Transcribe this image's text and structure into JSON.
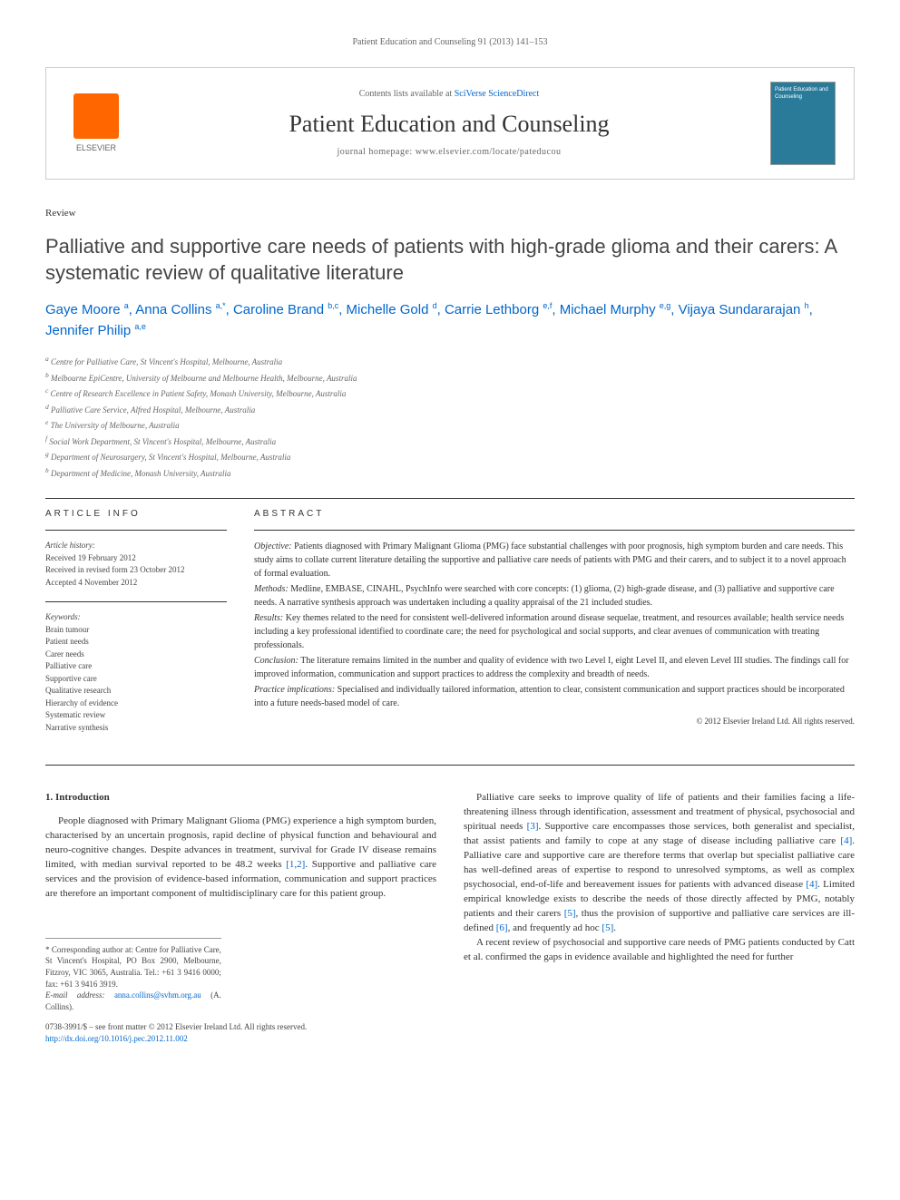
{
  "page_header": "Patient Education and Counseling 91 (2013) 141–153",
  "masthead": {
    "contents_prefix": "Contents lists available at ",
    "contents_link": "SciVerse ScienceDirect",
    "journal_name": "Patient Education and Counseling",
    "homepage_prefix": "journal homepage: ",
    "homepage_url": "www.elsevier.com/locate/pateducou",
    "elsevier_label": "ELSEVIER",
    "cover_title": "Patient Education and Counseling"
  },
  "article": {
    "type": "Review",
    "title": "Palliative and supportive care needs of patients with high-grade glioma and their carers: A systematic review of qualitative literature",
    "authors_html": "Gaye Moore <sup>a</sup>, Anna Collins <sup>a,*</sup>, Caroline Brand <sup>b,c</sup>, Michelle Gold <sup>d</sup>, Carrie Lethborg <sup>e,f</sup>, Michael Murphy <sup>e,g</sup>, Vijaya Sundararajan <sup>h</sup>, Jennifer Philip <sup>a,e</sup>",
    "affiliations": [
      "a Centre for Palliative Care, St Vincent's Hospital, Melbourne, Australia",
      "b Melbourne EpiCentre, University of Melbourne and Melbourne Health, Melbourne, Australia",
      "c Centre of Research Excellence in Patient Safety, Monash University, Melbourne, Australia",
      "d Palliative Care Service, Alfred Hospital, Melbourne, Australia",
      "e The University of Melbourne, Australia",
      "f Social Work Department, St Vincent's Hospital, Melbourne, Australia",
      "g Department of Neurosurgery, St Vincent's Hospital, Melbourne, Australia",
      "h Department of Medicine, Monash University, Australia"
    ]
  },
  "article_info": {
    "heading": "ARTICLE INFO",
    "history_label": "Article history:",
    "received": "Received 19 February 2012",
    "revised": "Received in revised form 23 October 2012",
    "accepted": "Accepted 4 November 2012",
    "keywords_label": "Keywords:",
    "keywords": [
      "Brain tumour",
      "Patient needs",
      "Carer needs",
      "Palliative care",
      "Supportive care",
      "Qualitative research",
      "Hierarchy of evidence",
      "Systematic review",
      "Narrative synthesis"
    ]
  },
  "abstract": {
    "heading": "ABSTRACT",
    "objective_label": "Objective:",
    "objective_text": " Patients diagnosed with Primary Malignant Glioma (PMG) face substantial challenges with poor prognosis, high symptom burden and care needs. This study aims to collate current literature detailing the supportive and palliative care needs of patients with PMG and their carers, and to subject it to a novel approach of formal evaluation.",
    "methods_label": "Methods:",
    "methods_text": " Medline, EMBASE, CINAHL, PsychInfo were searched with core concepts: (1) glioma, (2) high-grade disease, and (3) palliative and supportive care needs. A narrative synthesis approach was undertaken including a quality appraisal of the 21 included studies.",
    "results_label": "Results:",
    "results_text": " Key themes related to the need for consistent well-delivered information around disease sequelae, treatment, and resources available; health service needs including a key professional identified to coordinate care; the need for psychological and social supports, and clear avenues of communication with treating professionals.",
    "conclusion_label": "Conclusion:",
    "conclusion_text": " The literature remains limited in the number and quality of evidence with two Level I, eight Level II, and eleven Level III studies. The findings call for improved information, communication and support practices to address the complexity and breadth of needs.",
    "practice_label": "Practice implications:",
    "practice_text": " Specialised and individually tailored information, attention to clear, consistent communication and support practices should be incorporated into a future needs-based model of care.",
    "copyright": "© 2012 Elsevier Ireland Ltd. All rights reserved."
  },
  "body": {
    "section1_heading": "1. Introduction",
    "col1_p1": "People diagnosed with Primary Malignant Glioma (PMG) experience a high symptom burden, characterised by an uncertain prognosis, rapid decline of physical function and behavioural and neuro-cognitive changes. Despite advances in treatment, survival for Grade IV disease remains limited, with median survival reported to be 48.2 weeks [1,2]. Supportive and palliative care services and the provision of evidence-based information, communication and support practices are therefore an important component of multidisciplinary care for this patient group.",
    "col2_p1": "Palliative care seeks to improve quality of life of patients and their families facing a life-threatening illness through identification, assessment and treatment of physical, psychosocial and spiritual needs [3]. Supportive care encompasses those services, both generalist and specialist, that assist patients and family to cope at any stage of disease including palliative care [4]. Palliative care and supportive care are therefore terms that overlap but specialist palliative care has well-defined areas of expertise to respond to unresolved symptoms, as well as complex psychosocial, end-of-life and bereavement issues for patients with advanced disease [4]. Limited empirical knowledge exists to describe the needs of those directly affected by PMG, notably patients and their carers [5], thus the provision of supportive and palliative care services are ill-defined [6], and frequently ad hoc [5].",
    "col2_p2": "A recent review of psychosocial and supportive care needs of PMG patients conducted by Catt et al. confirmed the gaps in evidence available and highlighted the need for further"
  },
  "footnotes": {
    "corresponding": "* Corresponding author at: Centre for Palliative Care, St Vincent's Hospital, PO Box 2900, Melbourne, Fitzroy, VIC 3065, Australia. Tel.: +61 3 9416 0000; fax: +61 3 9416 3919.",
    "email_label": "E-mail address:",
    "email": "anna.collins@svhm.org.au",
    "email_suffix": " (A. Collins)."
  },
  "footer": {
    "issn_line": "0738-3991/$ – see front matter © 2012 Elsevier Ireland Ltd. All rights reserved.",
    "doi": "http://dx.doi.org/10.1016/j.pec.2012.11.002"
  },
  "colors": {
    "link_blue": "#0066cc",
    "text_gray": "#666666",
    "elsevier_orange": "#ff6600",
    "cover_blue": "#2a7a9a"
  }
}
